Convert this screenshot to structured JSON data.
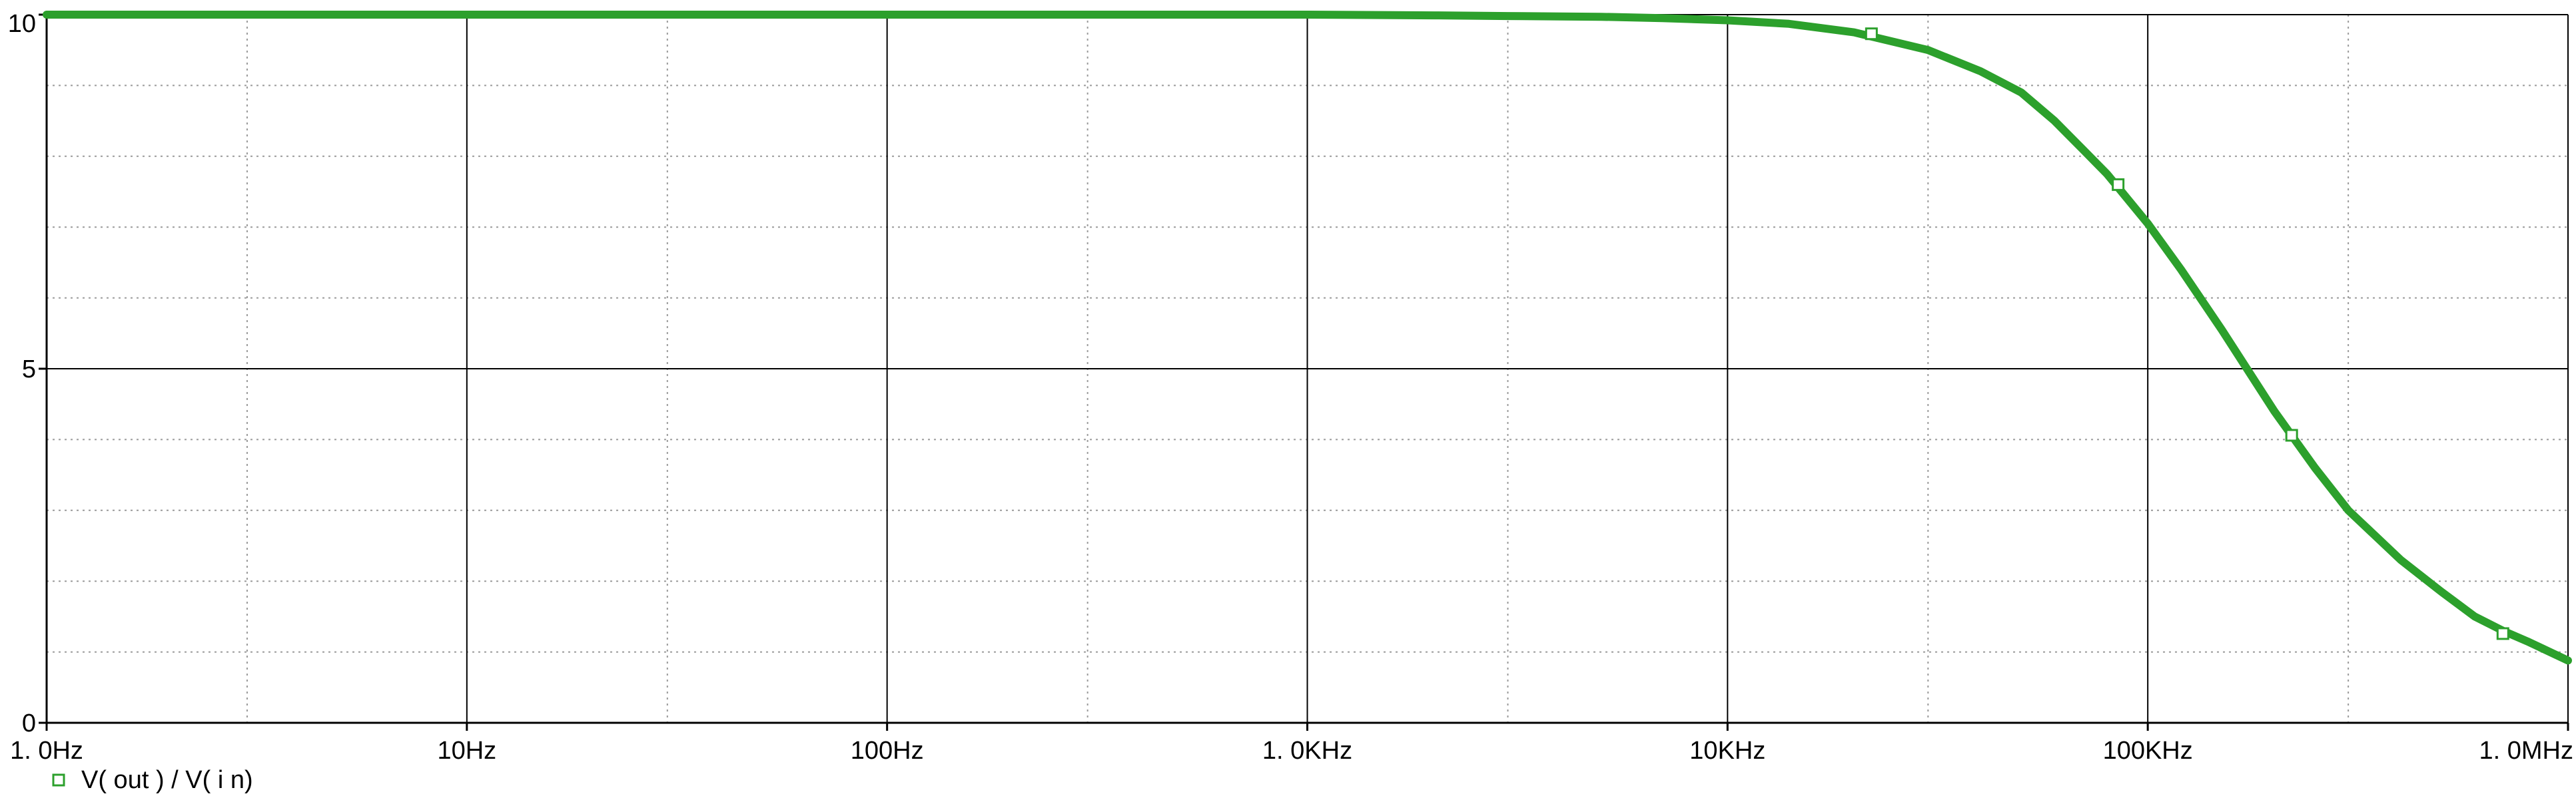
{
  "chart_data": {
    "type": "line",
    "title": "",
    "xlabel": "",
    "ylabel": "",
    "x_scale": "log",
    "xlim": [
      1,
      1000000
    ],
    "ylim": [
      0,
      10
    ],
    "grid": true,
    "x_ticks": [
      {
        "value": 1,
        "label": "1. 0Hz"
      },
      {
        "value": 10,
        "label": "10Hz"
      },
      {
        "value": 100,
        "label": "100Hz"
      },
      {
        "value": 1000,
        "label": "1. 0KHz"
      },
      {
        "value": 10000,
        "label": "10KHz"
      },
      {
        "value": 100000,
        "label": "100KHz"
      },
      {
        "value": 1000000,
        "label": "1. 0MHz"
      }
    ],
    "y_ticks": [
      {
        "value": 0,
        "label": "0"
      },
      {
        "value": 5,
        "label": "5"
      },
      {
        "value": 10,
        "label": "10"
      }
    ],
    "series": [
      {
        "name": "V(out) / V(in)",
        "legend_label": "V( out )  /  V( i n)",
        "color": "#2ca02c",
        "x": [
          1,
          10,
          100,
          1000,
          2000,
          3000,
          5000,
          7000,
          10000,
          14000,
          20000,
          30000,
          40000,
          50000,
          60000,
          70000,
          80000,
          100000,
          120000,
          150000,
          200000,
          250000,
          300000,
          400000,
          500000,
          600000,
          700000,
          800000,
          1000000
        ],
        "values": [
          10,
          10,
          10,
          10,
          9.99,
          9.98,
          9.97,
          9.95,
          9.92,
          9.87,
          9.75,
          9.5,
          9.2,
          8.9,
          8.5,
          8.1,
          7.75,
          7.05,
          6.4,
          5.55,
          4.4,
          3.6,
          3.0,
          2.3,
          1.85,
          1.5,
          1.3,
          1.15,
          0.88
        ],
        "markers": [
          {
            "x": 22000,
            "y": 9.73
          },
          {
            "x": 85000,
            "y": 7.6
          },
          {
            "x": 220000,
            "y": 4.06
          },
          {
            "x": 700000,
            "y": 1.26
          }
        ]
      }
    ]
  }
}
